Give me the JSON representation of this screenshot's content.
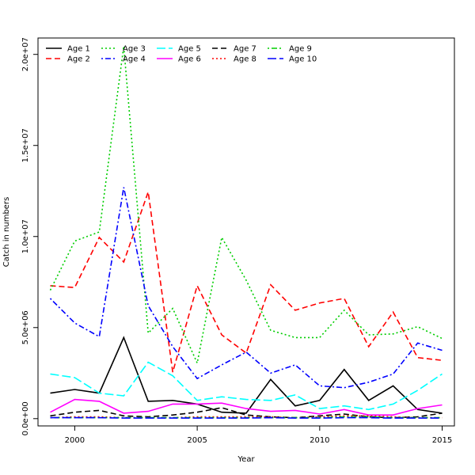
{
  "chart_data": {
    "type": "line",
    "title": "",
    "xlabel": "Year",
    "ylabel": "Catch in numbers",
    "xlim": [
      1998.5,
      2015.5
    ],
    "ylim": [
      -400000,
      20900000
    ],
    "x": [
      1999,
      2000,
      2001,
      2002,
      2003,
      2004,
      2005,
      2006,
      2007,
      2008,
      2009,
      2010,
      2011,
      2012,
      2013,
      2014,
      2015
    ],
    "x_ticks": [
      2000,
      2005,
      2010,
      2015
    ],
    "x_tick_labels": [
      "2000",
      "2005",
      "2010",
      "2015"
    ],
    "y_ticks": [
      0,
      5000000,
      10000000,
      15000000,
      20000000
    ],
    "y_tick_labels": [
      "0.0e+00",
      "5.0e+06",
      "1.0e+07",
      "1.5e+07",
      "2.0e+07"
    ],
    "grid": false,
    "legend_position": "top-left",
    "series": [
      {
        "name": "Age 1",
        "color": "#000000",
        "dash": "solid",
        "values": [
          1400000,
          1600000,
          1400000,
          4450000,
          950000,
          1000000,
          800000,
          350000,
          300000,
          2150000,
          700000,
          1000000,
          2700000,
          1000000,
          1800000,
          500000,
          300000
        ]
      },
      {
        "name": "Age 2",
        "color": "#ff0000",
        "dash": "dashed",
        "values": [
          7300000,
          7200000,
          9950000,
          8600000,
          12450000,
          2550000,
          7300000,
          4600000,
          3600000,
          7350000,
          5950000,
          6350000,
          6600000,
          3950000,
          5850000,
          3350000,
          3200000
        ]
      },
      {
        "name": "Age 3",
        "color": "#00cd00",
        "dash": "dotted",
        "values": [
          7050000,
          9750000,
          10250000,
          20450000,
          4700000,
          6050000,
          3050000,
          9950000,
          7600000,
          4850000,
          4450000,
          4450000,
          5950000,
          4600000,
          4650000,
          5050000,
          4400000
        ]
      },
      {
        "name": "Age 4",
        "color": "#0000ff",
        "dash": "dashdot",
        "values": [
          6600000,
          5250000,
          4500000,
          12700000,
          6200000,
          3950000,
          2200000,
          2950000,
          3650000,
          2500000,
          2950000,
          1800000,
          1700000,
          2000000,
          2450000,
          4150000,
          3750000
        ]
      },
      {
        "name": "Age 5",
        "color": "#00ffff",
        "dash": "longdash",
        "values": [
          2450000,
          2250000,
          1400000,
          1250000,
          3100000,
          2350000,
          1000000,
          1200000,
          1050000,
          1000000,
          1300000,
          550000,
          700000,
          500000,
          800000,
          1550000,
          2450000
        ]
      },
      {
        "name": "Age 6",
        "color": "#ff00ff",
        "dash": "solid",
        "values": [
          350000,
          1050000,
          950000,
          300000,
          400000,
          800000,
          800000,
          850000,
          550000,
          400000,
          450000,
          250000,
          500000,
          200000,
          200000,
          550000,
          750000
        ]
      },
      {
        "name": "Age 7",
        "color": "#000000",
        "dash": "dashed",
        "values": [
          150000,
          350000,
          450000,
          150000,
          100000,
          200000,
          350000,
          600000,
          200000,
          100000,
          50000,
          150000,
          250000,
          100000,
          50000,
          100000,
          300000
        ]
      },
      {
        "name": "Age 8",
        "color": "#ff0000",
        "dash": "dotted",
        "values": [
          50000,
          100000,
          100000,
          50000,
          50000,
          50000,
          100000,
          100000,
          100000,
          100000,
          50000,
          100000,
          150000,
          150000,
          100000,
          50000,
          50000
        ]
      },
      {
        "name": "Age 9",
        "color": "#00cd00",
        "dash": "dashdot",
        "values": [
          50000,
          50000,
          50000,
          50000,
          50000,
          50000,
          50000,
          50000,
          50000,
          50000,
          50000,
          50000,
          100000,
          100000,
          50000,
          50000,
          50000
        ]
      },
      {
        "name": "Age 10",
        "color": "#0000ff",
        "dash": "longdash",
        "values": [
          50000,
          50000,
          50000,
          30000,
          30000,
          30000,
          30000,
          30000,
          30000,
          50000,
          30000,
          30000,
          50000,
          50000,
          30000,
          30000,
          30000
        ]
      }
    ]
  }
}
